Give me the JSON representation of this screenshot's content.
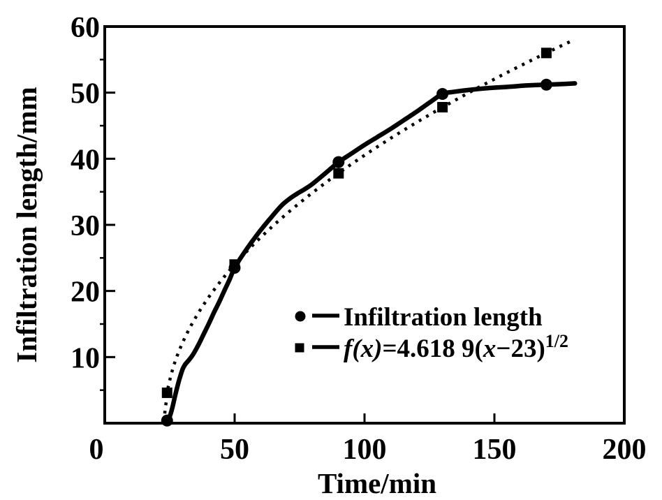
{
  "figure": {
    "background": "#ffffff",
    "ink_color": "#000000"
  },
  "chart_data": {
    "type": "line",
    "title": "",
    "xlabel": "Time/min",
    "ylabel": "Infiltration length/mm",
    "xlim": [
      0,
      200
    ],
    "ylim": [
      0,
      60
    ],
    "x_ticks": [
      0,
      50,
      100,
      150,
      200
    ],
    "y_ticks": [
      10,
      20,
      30,
      40,
      50,
      60
    ],
    "y_minor_ticks": [
      5,
      15,
      25,
      35,
      45,
      55
    ],
    "grid": false,
    "legend_position": "inside-lower-right",
    "series": [
      {
        "name": "Infiltration length",
        "marker": "circle",
        "line_style": "solid",
        "points": [
          [
            24,
            0.4
          ],
          [
            50,
            23.5
          ],
          [
            90,
            39.5
          ],
          [
            130,
            49.8
          ],
          [
            170,
            51.2
          ]
        ],
        "curve": [
          [
            23.5,
            0
          ],
          [
            24,
            0.4
          ],
          [
            25,
            1
          ],
          [
            26,
            2.3
          ],
          [
            27,
            4
          ],
          [
            28,
            5.6
          ],
          [
            29,
            7
          ],
          [
            30,
            8.2
          ],
          [
            31,
            8.9
          ],
          [
            32.5,
            9.6
          ],
          [
            34,
            10.4
          ],
          [
            36,
            11.8
          ],
          [
            38,
            13.4
          ],
          [
            40,
            15
          ],
          [
            42,
            16.7
          ],
          [
            44,
            18.3
          ],
          [
            46,
            20
          ],
          [
            48,
            21.7
          ],
          [
            50,
            23.5
          ],
          [
            53,
            25.4
          ],
          [
            56,
            27.1
          ],
          [
            60,
            29.2
          ],
          [
            64,
            31.1
          ],
          [
            68,
            32.9
          ],
          [
            71,
            33.9
          ],
          [
            74,
            34.7
          ],
          [
            77,
            35.4
          ],
          [
            80,
            36.2
          ],
          [
            84,
            37.5
          ],
          [
            87,
            38.5
          ],
          [
            90,
            39.5
          ],
          [
            95,
            40.8
          ],
          [
            100,
            42.1
          ],
          [
            105,
            43.3
          ],
          [
            110,
            44.5
          ],
          [
            115,
            45.8
          ],
          [
            120,
            47.1
          ],
          [
            125,
            48.5
          ],
          [
            130,
            49.8
          ],
          [
            134,
            50.1
          ],
          [
            140,
            50.4
          ],
          [
            148,
            50.7
          ],
          [
            156,
            50.9
          ],
          [
            163,
            51.1
          ],
          [
            170,
            51.2
          ],
          [
            176,
            51.3
          ],
          [
            181,
            51.4
          ]
        ]
      },
      {
        "name": "f(x)=4.618 9(x−23)^1/2",
        "marker": "square",
        "line_style": "dotted",
        "fit_formula": {
          "coefficient": 4.6189,
          "x_offset": 23,
          "exponent": 0.5
        },
        "points": [
          [
            24,
            4.6
          ],
          [
            50,
            24.0
          ],
          [
            90,
            37.8
          ],
          [
            130,
            47.8
          ],
          [
            170,
            56.0
          ]
        ],
        "curve_domain": [
          23.1,
          181
        ]
      }
    ],
    "legend": {
      "items": [
        {
          "marker": "circle",
          "label": "Infiltration length"
        },
        {
          "marker": "square",
          "label": "f(x)=4.618 9(x−23)^1/2",
          "label_parts": [
            {
              "text": "f(x)",
              "style": "italic"
            },
            {
              "text": "=4.618 9(",
              "style": "normal"
            },
            {
              "text": "x",
              "style": "italic"
            },
            {
              "text": "−23)",
              "style": "normal"
            },
            {
              "text": "1/2",
              "style": "superscript"
            }
          ]
        }
      ]
    }
  }
}
